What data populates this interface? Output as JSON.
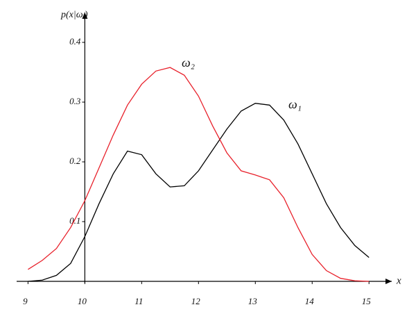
{
  "chart_data": {
    "type": "line",
    "y_label": "p(x|ωᵢ)",
    "x_label": "x",
    "x": [
      9,
      9.25,
      9.5,
      9.75,
      10,
      10.25,
      10.5,
      10.75,
      11,
      11.25,
      11.5,
      11.75,
      12,
      12.25,
      12.5,
      12.75,
      13,
      13.25,
      13.5,
      13.75,
      14,
      14.25,
      14.5,
      14.75,
      15
    ],
    "series": [
      {
        "name": "ω₁",
        "color": "#000000",
        "values": [
          0,
          0.002,
          0.01,
          0.03,
          0.075,
          0.13,
          0.18,
          0.218,
          0.212,
          0.18,
          0.158,
          0.16,
          0.185,
          0.22,
          0.255,
          0.285,
          0.298,
          0.295,
          0.27,
          0.23,
          0.18,
          0.13,
          0.09,
          0.06,
          0.04
        ]
      },
      {
        "name": "ω₂",
        "color": "#e8212b",
        "values": [
          0.02,
          0.035,
          0.055,
          0.09,
          0.135,
          0.19,
          0.245,
          0.295,
          0.33,
          0.352,
          0.358,
          0.345,
          0.31,
          0.26,
          0.215,
          0.185,
          0.178,
          0.17,
          0.14,
          0.09,
          0.045,
          0.018,
          0.005,
          0.001,
          0
        ]
      }
    ],
    "xlim": [
      8.8,
      15.4
    ],
    "ylim": [
      0,
      0.45
    ],
    "xticks": [
      9,
      10,
      11,
      12,
      13,
      14,
      15
    ],
    "yticks": [
      0.1,
      0.2,
      0.3,
      0.4
    ],
    "y_axis_at": 10
  }
}
